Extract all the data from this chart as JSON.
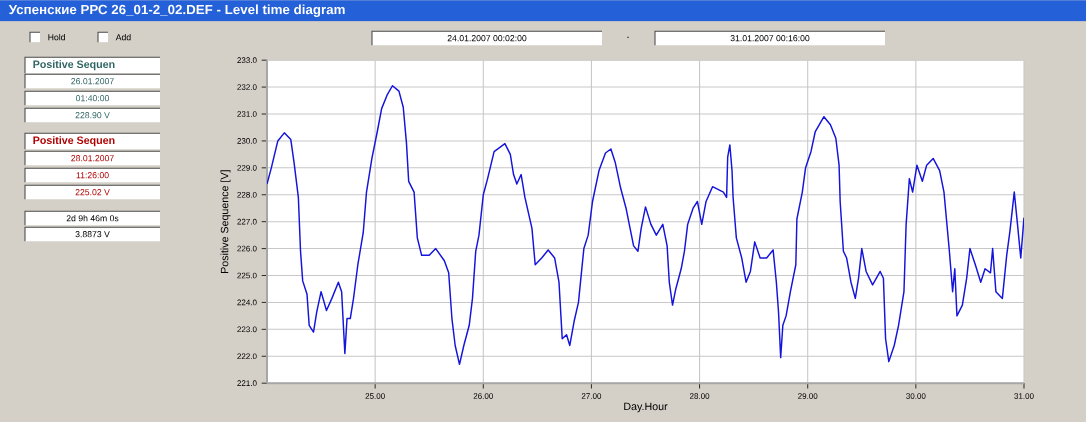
{
  "chart_data": {
    "type": "line",
    "title": "Успенские РРС 26_01-2_02.DEF - Level time diagram",
    "xlabel": "Day.Hour",
    "ylabel": "Positive Sequence [V]",
    "xlim": [
      24,
      31
    ],
    "ylim": [
      221,
      233
    ],
    "xticks": [
      {
        "value": 25,
        "label": "25.00"
      },
      {
        "value": 26,
        "label": "26.00"
      },
      {
        "value": 27,
        "label": "27.00"
      },
      {
        "value": 28,
        "label": "28.00"
      },
      {
        "value": 29,
        "label": "29.00"
      },
      {
        "value": 30,
        "label": "30.00"
      },
      {
        "value": 31,
        "label": "31.00"
      }
    ],
    "yticks": [
      {
        "value": 221,
        "label": "221.0"
      },
      {
        "value": 222,
        "label": "222.0"
      },
      {
        "value": 223,
        "label": "223.0"
      },
      {
        "value": 224,
        "label": "224.0"
      },
      {
        "value": 225,
        "label": "225.0"
      },
      {
        "value": 226,
        "label": "226.0"
      },
      {
        "value": 227,
        "label": "227.0"
      },
      {
        "value": 228,
        "label": "228.0"
      },
      {
        "value": 229,
        "label": "229.0"
      },
      {
        "value": 230,
        "label": "230.0"
      },
      {
        "value": 231,
        "label": "231.0"
      },
      {
        "value": 232,
        "label": "232.0"
      },
      {
        "value": 233,
        "label": "233.0"
      }
    ],
    "grid": true,
    "x": [
      24.0,
      24.04,
      24.1,
      24.16,
      24.22,
      24.25,
      24.29,
      24.31,
      24.33,
      24.37,
      24.39,
      24.43,
      24.46,
      24.5,
      24.55,
      24.6,
      24.66,
      24.69,
      24.72,
      24.74,
      24.77,
      24.8,
      24.84,
      24.89,
      24.92,
      24.97,
      25.02,
      25.06,
      25.11,
      25.16,
      25.22,
      25.26,
      25.29,
      25.31,
      25.36,
      25.39,
      25.43,
      25.5,
      25.56,
      25.64,
      25.68,
      25.71,
      25.74,
      25.78,
      25.82,
      25.87,
      25.9,
      25.93,
      25.96,
      26.0,
      26.04,
      26.1,
      26.2,
      26.25,
      26.28,
      26.31,
      26.35,
      26.385,
      26.45,
      26.48,
      26.54,
      26.6,
      26.66,
      26.7,
      26.73,
      26.77,
      26.8,
      26.84,
      26.88,
      26.93,
      26.97,
      27.01,
      27.07,
      27.13,
      27.18,
      27.22,
      27.27,
      27.32,
      27.35,
      27.39,
      27.43,
      27.46,
      27.5,
      27.55,
      27.6,
      27.66,
      27.7,
      27.72,
      27.75,
      27.78,
      27.83,
      27.86,
      27.89,
      27.94,
      27.98,
      28.02,
      28.06,
      28.12,
      28.22,
      28.25,
      28.26,
      28.28,
      28.3,
      28.31,
      28.34,
      28.39,
      28.43,
      28.47,
      28.51,
      28.56,
      28.62,
      28.68,
      28.71,
      28.73,
      28.75,
      28.77,
      28.8,
      28.84,
      28.89,
      28.9,
      28.95,
      28.98,
      29.03,
      29.07,
      29.15,
      29.21,
      29.26,
      29.29,
      29.3,
      29.33,
      29.36,
      29.4,
      29.44,
      29.47,
      29.5,
      29.54,
      29.6,
      29.67,
      29.7,
      29.72,
      29.75,
      29.8,
      29.84,
      29.89,
      29.91,
      29.94,
      29.97,
      30.01,
      30.06,
      30.1,
      30.16,
      30.22,
      30.26,
      30.31,
      30.34,
      30.36,
      30.38,
      30.43,
      30.47,
      30.5,
      30.55,
      30.6,
      30.64,
      30.69,
      30.71,
      30.74,
      30.8,
      30.84,
      30.87,
      30.91,
      30.94,
      30.97,
      31.0
    ],
    "series": [
      {
        "color": "#1414dc",
        "values": [
          228.4,
          229.0,
          230.0,
          230.3,
          230.05,
          229.2,
          227.9,
          225.9,
          224.8,
          224.3,
          223.15,
          222.9,
          223.65,
          224.4,
          223.7,
          224.15,
          224.75,
          224.4,
          222.1,
          223.4,
          223.4,
          224.15,
          225.4,
          226.6,
          228.1,
          229.35,
          230.35,
          231.2,
          231.7,
          232.05,
          231.85,
          231.25,
          229.9,
          228.5,
          228.1,
          226.4,
          225.75,
          225.75,
          226.0,
          225.55,
          225.1,
          223.4,
          222.4,
          221.7,
          222.4,
          223.15,
          224.15,
          225.9,
          226.5,
          228.0,
          228.6,
          229.6,
          229.9,
          229.5,
          228.75,
          228.4,
          228.75,
          227.9,
          226.75,
          225.4,
          225.65,
          225.95,
          225.65,
          224.75,
          222.65,
          222.8,
          222.4,
          223.3,
          224.0,
          226.0,
          226.5,
          227.75,
          228.9,
          229.55,
          229.7,
          229.2,
          228.25,
          227.5,
          226.9,
          226.1,
          225.9,
          226.75,
          227.55,
          226.9,
          226.5,
          226.9,
          226.1,
          224.75,
          223.9,
          224.5,
          225.25,
          225.9,
          226.9,
          227.5,
          227.75,
          226.9,
          227.75,
          228.3,
          228.1,
          227.9,
          229.4,
          229.85,
          228.9,
          227.9,
          226.4,
          225.65,
          224.75,
          225.15,
          226.25,
          225.65,
          225.65,
          225.95,
          224.75,
          223.65,
          221.95,
          223.15,
          223.5,
          224.4,
          225.4,
          227.1,
          228.1,
          229.0,
          229.6,
          230.35,
          230.9,
          230.6,
          230.1,
          229.1,
          227.75,
          225.9,
          225.65,
          224.75,
          224.15,
          224.9,
          226.0,
          225.15,
          224.65,
          225.15,
          224.9,
          222.65,
          221.8,
          222.4,
          223.15,
          224.4,
          226.9,
          228.6,
          228.1,
          229.1,
          228.5,
          229.1,
          229.35,
          228.9,
          228.1,
          225.9,
          224.4,
          225.25,
          223.5,
          223.9,
          224.9,
          226.0,
          225.4,
          224.75,
          225.25,
          225.1,
          226.0,
          224.4,
          224.15,
          225.75,
          226.65,
          228.1,
          226.9,
          225.65,
          227.15
        ]
      }
    ],
    "annotations": [
      "Hold",
      "Add",
      "24.01.2007 00:02:00",
      "-",
      "31.01.2007 00:16:00",
      "Positive Sequen",
      "26.01.2007",
      "01:40:00",
      "228.90 V",
      "Positive Sequen",
      "28.01.2007",
      "11:26:00",
      "225.02 V",
      "2d 9h 46m 0s",
      "3.8873 V"
    ]
  }
}
